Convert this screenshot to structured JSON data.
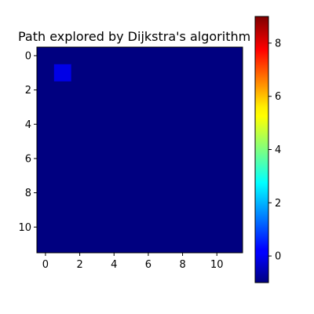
{
  "chart_data": {
    "type": "heatmap",
    "title": "Path explored by Dijkstra's algorithm",
    "xlabel": "",
    "ylabel": "",
    "rows": 12,
    "cols": 12,
    "colormap": "jet",
    "vmin": -1,
    "vmax": 9,
    "default_value": -1,
    "highlighted_cells": [
      {
        "row": 1,
        "col": 1,
        "value": 0
      }
    ],
    "x_ticks": [
      0,
      2,
      4,
      6,
      8,
      10
    ],
    "y_ticks": [
      0,
      2,
      4,
      6,
      8,
      10
    ],
    "colorbar_ticks": [
      0,
      2,
      4,
      6,
      8
    ],
    "grid": false
  }
}
